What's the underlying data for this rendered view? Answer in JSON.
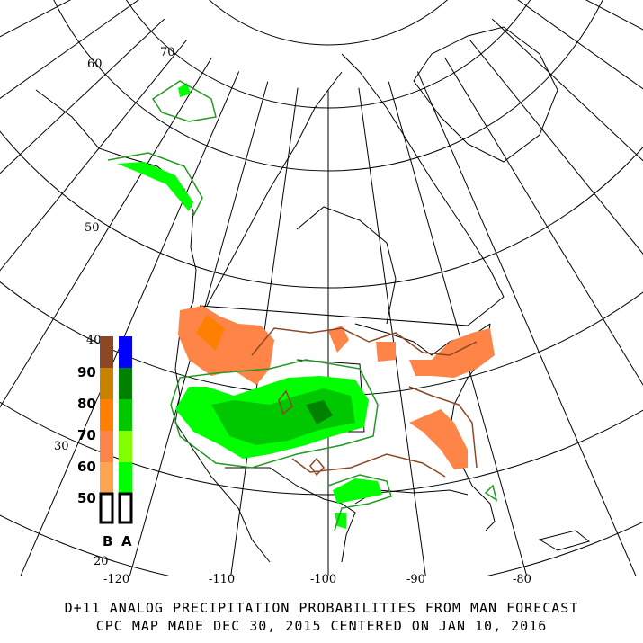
{
  "title_line1": "D+11 ANALOG PRECIPITATION PROBABILITIES FROM MAN FORECAST",
  "title_line2": "CPC MAP MADE DEC 30, 2015 CENTERED ON JAN 10, 2016",
  "lat_labels": [
    "70",
    "60",
    "50",
    "40",
    "30",
    "20"
  ],
  "lon_labels": [
    "-120",
    "-110",
    "-100",
    "-90",
    "-80"
  ],
  "legend": {
    "levels": [
      "90",
      "80",
      "70",
      "60",
      "50"
    ],
    "below_label": "B",
    "above_label": "A",
    "below_colors": [
      "#8b4726",
      "#c88200",
      "#ff8000",
      "#ff8448",
      "#ffa550"
    ],
    "above_colors": [
      "#0000ff",
      "#008200",
      "#00c800",
      "#82ff00",
      "#00ff00"
    ]
  },
  "colors": {
    "below": "#ff8448",
    "above": "#00dd00",
    "below_contour": "#8b4726",
    "above_contour": "#229922"
  }
}
